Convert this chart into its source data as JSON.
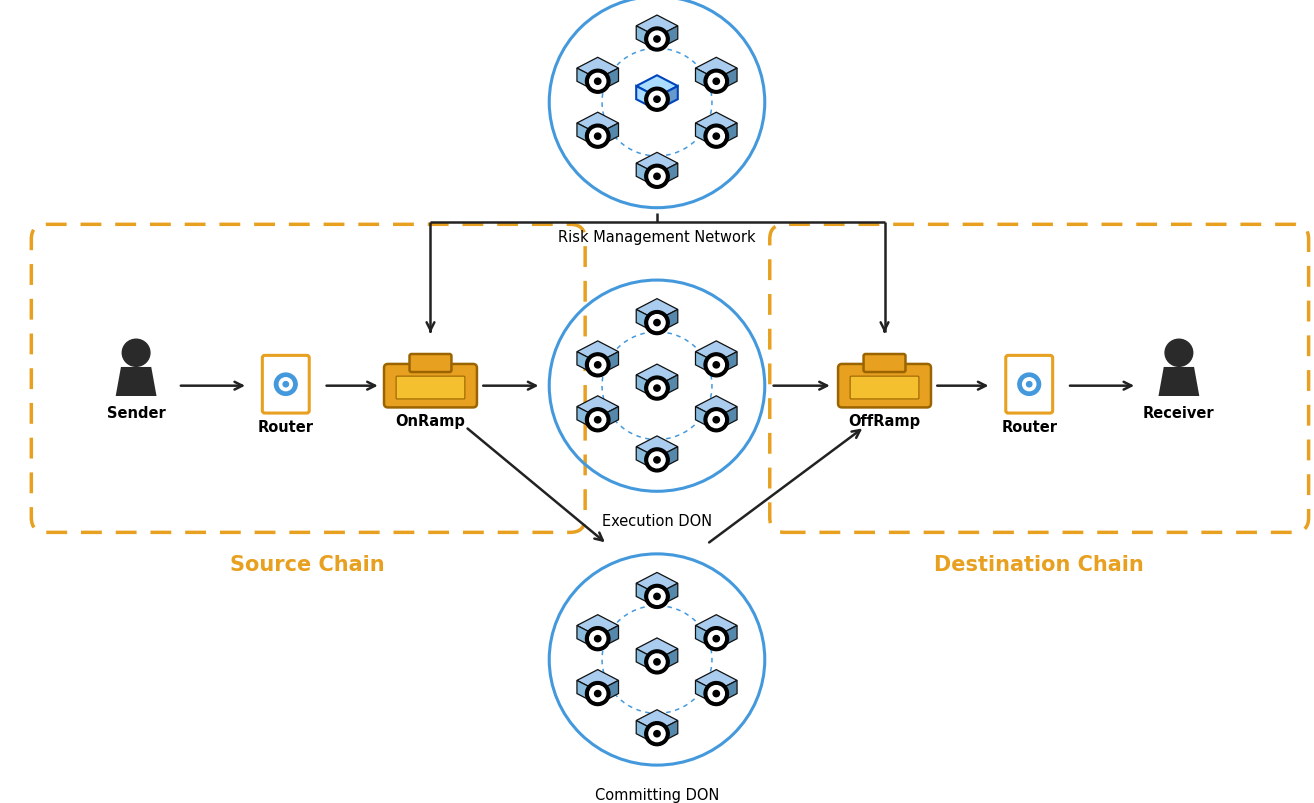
{
  "bg_color": "#ffffff",
  "gold_color": "#E8A020",
  "blue_color": "#4499DD",
  "dark_color": "#2A2A2A",
  "arrow_color": "#222222",
  "source_chain_label": "Source Chain",
  "dest_chain_label": "Destination Chain",
  "nodes": {
    "sender": {
      "label": "Sender"
    },
    "router_src": {
      "label": "Router"
    },
    "onramp": {
      "label": "OnRamp"
    },
    "exec_don": {
      "label": "Execution DON"
    },
    "risk_mgmt": {
      "label": "Risk Management Network"
    },
    "commit_don": {
      "label": "Committing DON"
    },
    "offramp": {
      "label": "OffRamp"
    },
    "router_dst": {
      "label": "Router"
    },
    "receiver": {
      "label": "Receiver"
    }
  }
}
